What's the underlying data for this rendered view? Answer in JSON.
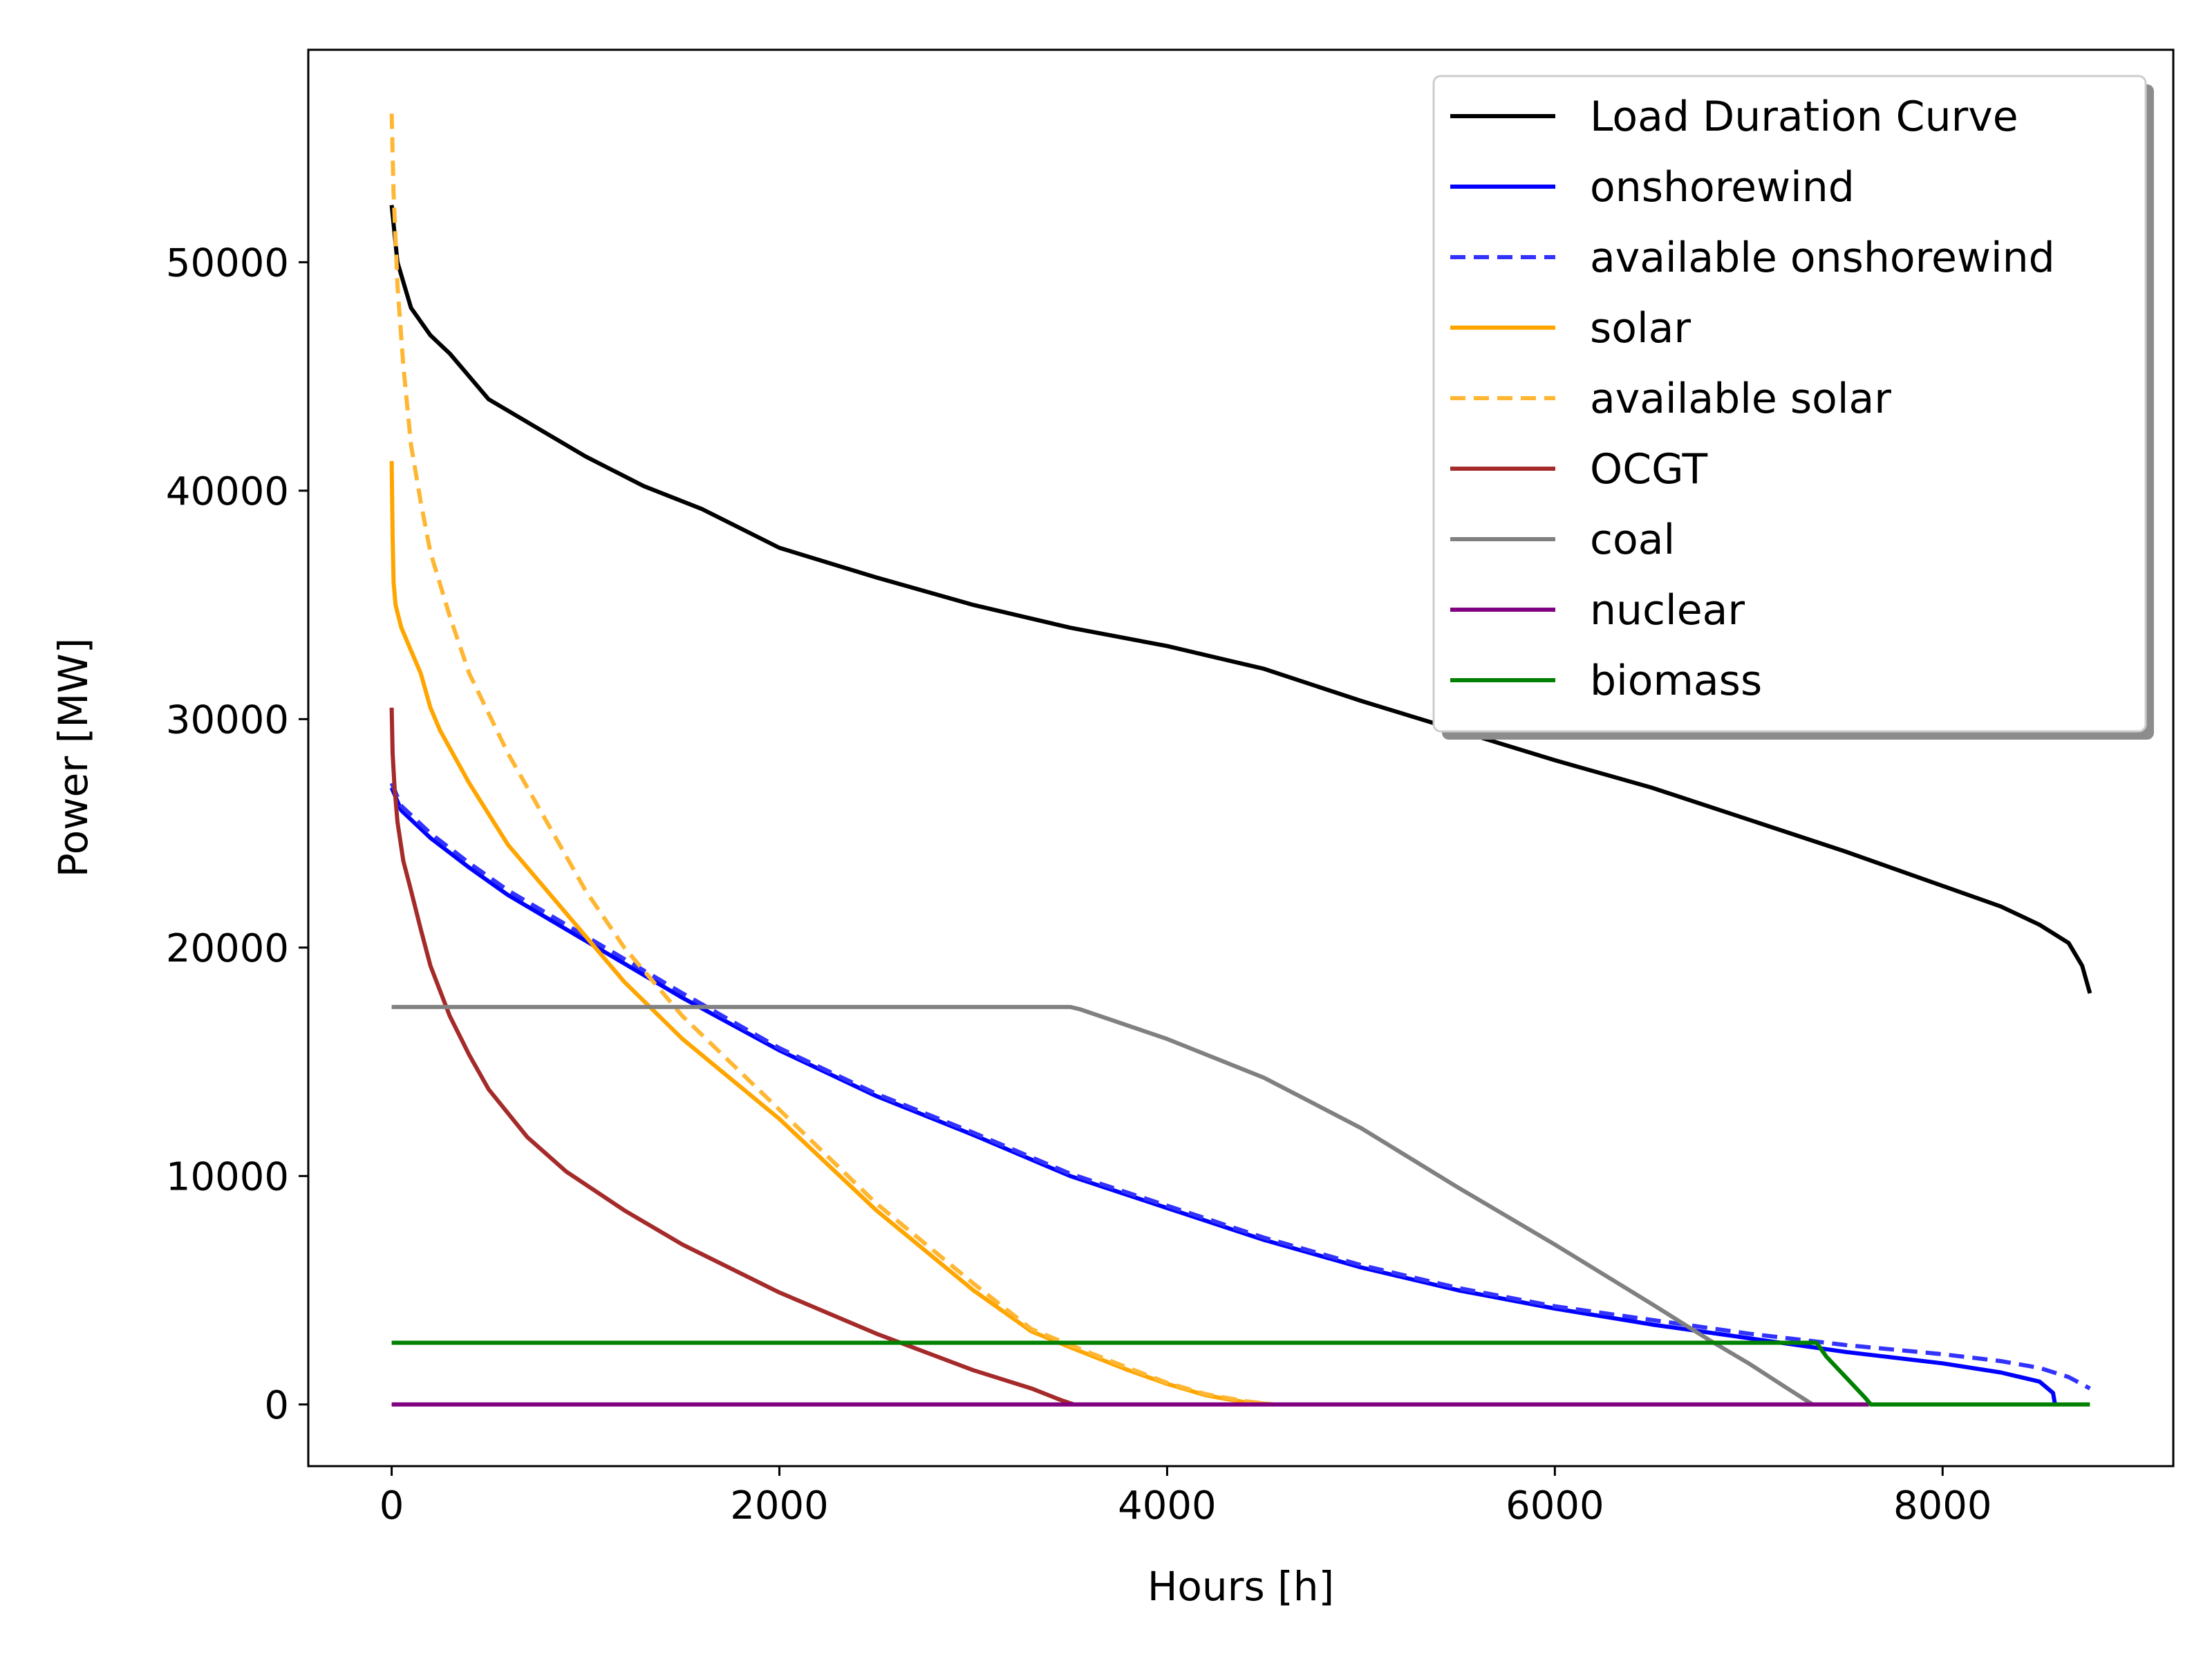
{
  "chart_data": {
    "type": "line",
    "title": "",
    "xlabel": "Hours [h]",
    "ylabel": "Power [MW]",
    "xlim": [
      -430,
      9190
    ],
    "ylim": [
      -2700,
      59300
    ],
    "xticks": [
      0,
      2000,
      4000,
      6000,
      8000
    ],
    "yticks": [
      0,
      10000,
      20000,
      30000,
      40000,
      50000
    ],
    "grid": false,
    "legend": {
      "position": "top-right",
      "shadow": true
    },
    "series": [
      {
        "name": "Load Duration Curve",
        "color": "#000000",
        "dashed": false,
        "x": [
          0,
          30,
          100,
          200,
          300,
          400,
          500,
          700,
          1000,
          1300,
          1600,
          2000,
          2500,
          3000,
          3500,
          4000,
          4500,
          5000,
          5500,
          6000,
          6500,
          7000,
          7500,
          8000,
          8300,
          8500,
          8650,
          8720,
          8760
        ],
        "y": [
          52500,
          50000,
          48000,
          46800,
          46000,
          45000,
          44000,
          43000,
          41500,
          40200,
          39200,
          37500,
          36200,
          35000,
          34000,
          33200,
          32200,
          30800,
          29500,
          28200,
          27000,
          25600,
          24200,
          22700,
          21800,
          21000,
          20200,
          19200,
          18000
        ]
      },
      {
        "name": "onshorewind",
        "color": "#0000ff",
        "dashed": false,
        "x": [
          0,
          50,
          200,
          400,
          600,
          1000,
          1500,
          2000,
          2500,
          3000,
          3500,
          4000,
          4500,
          5000,
          5500,
          6000,
          6500,
          7000,
          7500,
          8000,
          8300,
          8500,
          8570,
          8580
        ],
        "y": [
          27000,
          26000,
          24800,
          23500,
          22300,
          20300,
          17800,
          15500,
          13500,
          11800,
          10000,
          8600,
          7200,
          6000,
          5000,
          4200,
          3500,
          2900,
          2300,
          1800,
          1400,
          1000,
          500,
          0
        ]
      },
      {
        "name": "available onshorewind",
        "color": "#3333ff",
        "dashed": true,
        "x": [
          0,
          50,
          200,
          400,
          600,
          1000,
          1500,
          2000,
          2500,
          3000,
          3500,
          4000,
          4500,
          5000,
          5500,
          6000,
          6500,
          7000,
          7500,
          8000,
          8300,
          8500,
          8650,
          8760
        ],
        "y": [
          27200,
          26200,
          25000,
          23700,
          22500,
          20500,
          18000,
          15600,
          13600,
          11900,
          10100,
          8700,
          7300,
          6100,
          5100,
          4300,
          3700,
          3100,
          2600,
          2200,
          1900,
          1600,
          1200,
          700
        ]
      },
      {
        "name": "solar",
        "color": "#ffa500",
        "dashed": false,
        "x": [
          0,
          5,
          10,
          20,
          50,
          100,
          150,
          200,
          250,
          400,
          600,
          800,
          1000,
          1200,
          1500,
          2000,
          2500,
          3000,
          3300,
          3500,
          3800,
          4000,
          4200,
          4400,
          4550
        ],
        "y": [
          41300,
          38000,
          36000,
          35000,
          34000,
          33000,
          32000,
          30500,
          29500,
          27200,
          24500,
          22500,
          20500,
          18500,
          16000,
          12500,
          8500,
          5000,
          3200,
          2500,
          1500,
          900,
          400,
          100,
          0
        ]
      },
      {
        "name": "available solar",
        "color": "#ffb733",
        "dashed": true,
        "x": [
          0,
          10,
          30,
          60,
          100,
          150,
          200,
          300,
          400,
          600,
          800,
          1000,
          1200,
          1500,
          2000,
          2500,
          3000,
          3300,
          3500,
          3800,
          4000,
          4200,
          4400,
          4550
        ],
        "y": [
          56500,
          53000,
          49000,
          45500,
          42000,
          39500,
          37300,
          34500,
          32000,
          28500,
          25500,
          22500,
          20000,
          17000,
          12900,
          8800,
          5300,
          3300,
          2600,
          1600,
          950,
          450,
          150,
          0
        ]
      },
      {
        "name": "OCGT",
        "color": "#a52a2a",
        "dashed": false,
        "x": [
          0,
          5,
          15,
          30,
          60,
          100,
          150,
          200,
          300,
          400,
          500,
          700,
          900,
          1200,
          1500,
          2000,
          2500,
          3000,
          3300,
          3450,
          3520
        ],
        "y": [
          30500,
          28500,
          27000,
          25500,
          23800,
          22500,
          20800,
          19200,
          17000,
          15300,
          13800,
          11700,
          10200,
          8500,
          7000,
          4900,
          3100,
          1500,
          700,
          200,
          0
        ]
      },
      {
        "name": "coal",
        "color": "#808080",
        "dashed": false,
        "x": [
          0,
          3500,
          3550,
          4000,
          4500,
          5000,
          5500,
          6000,
          6500,
          6800,
          7000,
          7200,
          7330
        ],
        "y": [
          17400,
          17400,
          17300,
          16000,
          14300,
          12100,
          9500,
          7000,
          4400,
          2800,
          1800,
          700,
          0
        ]
      },
      {
        "name": "nuclear",
        "color": "#800080",
        "dashed": false,
        "x": [
          0,
          7620
        ],
        "y": [
          0,
          0
        ]
      },
      {
        "name": "biomass",
        "color": "#008000",
        "dashed": false,
        "x": [
          0,
          7350,
          7400,
          7500,
          7600,
          7630,
          8760
        ],
        "y": [
          2700,
          2700,
          2100,
          1200,
          300,
          0,
          0
        ]
      }
    ]
  }
}
